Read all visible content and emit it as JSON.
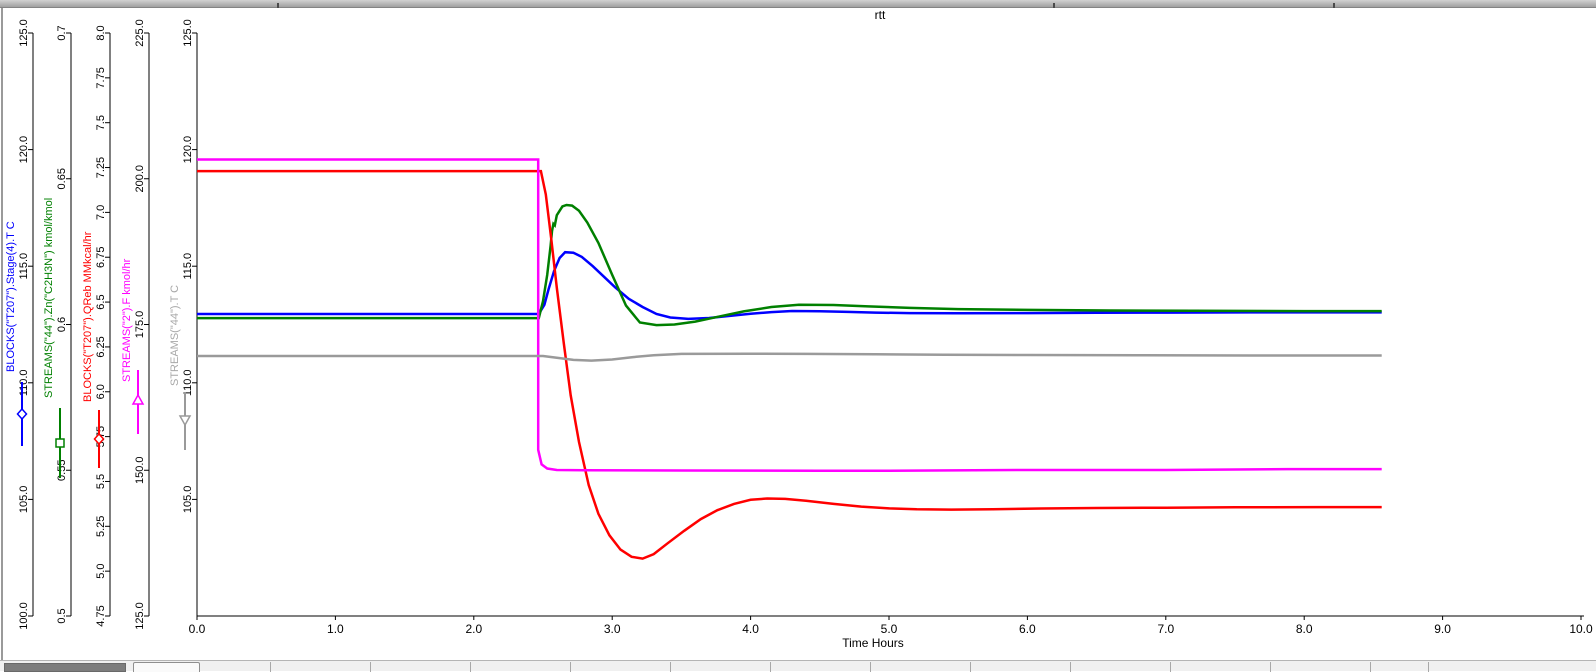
{
  "chart_data": {
    "type": "line",
    "title": "rtt",
    "xlabel": "Time Hours",
    "legend_position": "left-axes",
    "grid": false,
    "x_axis": {
      "min": 0,
      "max": 10,
      "tick_values": [
        0,
        1,
        2,
        3,
        4,
        5,
        6,
        7,
        8,
        9,
        10
      ],
      "tick_labels": [
        "0.0",
        "1.0",
        "2.0",
        "3.0",
        "4.0",
        "5.0",
        "6.0",
        "7.0",
        "8.0",
        "9.0",
        "10.0"
      ]
    },
    "y_axes": [
      {
        "label": "BLOCKS(\"T207\").Stage(4).T C",
        "color": "#0000ff",
        "label_color": "#0000ff",
        "min": 100,
        "max": 125,
        "marker": "diamond",
        "tick_values": [
          100,
          105,
          110,
          115,
          120,
          125
        ],
        "tick_labels": [
          "100.0",
          "105.0",
          "110.0",
          "115.0",
          "120.0",
          "125.0"
        ]
      },
      {
        "label": "STREAMS(\"44\").Zn(\"C2H3N\") kmol/kmol",
        "color": "#008000",
        "label_color": "#008000",
        "min": 0.5,
        "max": 0.7,
        "marker": "square",
        "tick_values": [
          0.5,
          0.55,
          0.6,
          0.65,
          0.7
        ],
        "tick_labels": [
          "0.5",
          "0.55",
          "0.6",
          "0.65",
          "0.7"
        ]
      },
      {
        "label": "BLOCKS(\"T207\").QReb MMkcal/hr",
        "color": "#ff0000",
        "label_color": "#ff0000",
        "min": 4.75,
        "max": 8.0,
        "marker": "diamond",
        "tick_values": [
          4.75,
          5.0,
          5.25,
          5.5,
          5.75,
          6.0,
          6.25,
          6.5,
          6.75,
          7.0,
          7.25,
          7.5,
          7.75,
          8.0
        ],
        "tick_labels": [
          "4.75",
          "5.0",
          "5.25",
          "5.5",
          "5.75",
          "6.0",
          "6.25",
          "6.5",
          "6.75",
          "7.0",
          "7.25",
          "7.5",
          "7.75",
          "8.0"
        ]
      },
      {
        "label": "STREAMS(\"2\").F kmol/hr",
        "color": "#ff00ff",
        "label_color": "#ff00ff",
        "min": 125,
        "max": 225,
        "marker": "triangle-up",
        "tick_values": [
          125,
          150,
          175,
          200,
          225
        ],
        "tick_labels": [
          "125.0",
          "150.0",
          "175.0",
          "200.0",
          "225.0"
        ]
      },
      {
        "label": "STREAMS(\"44\").T C",
        "color": "#9a9a9a",
        "label_color": "#a8a8a8",
        "min": 100,
        "max": 125,
        "marker": "triangle-down",
        "tick_values": [
          105,
          110,
          115,
          120,
          125
        ],
        "tick_labels": [
          "105.0",
          "110.0",
          "115.0",
          "120.0",
          "125.0"
        ]
      }
    ],
    "series": [
      {
        "name": "BLOCKS(\"T207\").Stage(4).T C",
        "axis_index": 0,
        "color": "#0000ff",
        "points": [
          [
            0,
            112.95
          ],
          [
            2.47,
            112.95
          ],
          [
            2.51,
            113.35
          ],
          [
            2.54,
            114.0
          ],
          [
            2.58,
            114.8
          ],
          [
            2.62,
            115.35
          ],
          [
            2.66,
            115.6
          ],
          [
            2.72,
            115.58
          ],
          [
            2.78,
            115.4
          ],
          [
            2.86,
            115.0
          ],
          [
            2.94,
            114.55
          ],
          [
            3.02,
            114.1
          ],
          [
            3.12,
            113.6
          ],
          [
            3.22,
            113.25
          ],
          [
            3.32,
            112.95
          ],
          [
            3.42,
            112.8
          ],
          [
            3.55,
            112.74
          ],
          [
            3.7,
            112.78
          ],
          [
            3.85,
            112.87
          ],
          [
            4.0,
            112.96
          ],
          [
            4.15,
            113.03
          ],
          [
            4.3,
            113.08
          ],
          [
            4.5,
            113.07
          ],
          [
            4.7,
            113.04
          ],
          [
            4.9,
            113.01
          ],
          [
            5.15,
            112.99
          ],
          [
            5.5,
            112.98
          ],
          [
            6.0,
            112.99
          ],
          [
            6.5,
            113.0
          ],
          [
            7.0,
            113.01
          ],
          [
            7.6,
            113.02
          ],
          [
            8.56,
            113.02
          ]
        ]
      },
      {
        "name": "STREAMS(\"44\").Zn(\"C2H3N\") kmol/kmol",
        "axis_index": 1,
        "color": "#008000",
        "points": [
          [
            0,
            0.6022
          ],
          [
            2.47,
            0.6022
          ],
          [
            2.5,
            0.608
          ],
          [
            2.53,
            0.617
          ],
          [
            2.555,
            0.627
          ],
          [
            2.565,
            0.632
          ],
          [
            2.575,
            0.6345
          ],
          [
            2.585,
            0.634
          ],
          [
            2.6,
            0.6375
          ],
          [
            2.64,
            0.6405
          ],
          [
            2.67,
            0.641
          ],
          [
            2.71,
            0.6408
          ],
          [
            2.76,
            0.639
          ],
          [
            2.82,
            0.635
          ],
          [
            2.9,
            0.628
          ],
          [
            3.0,
            0.617
          ],
          [
            3.1,
            0.6065
          ],
          [
            3.2,
            0.6007
          ],
          [
            3.32,
            0.5998
          ],
          [
            3.45,
            0.6
          ],
          [
            3.6,
            0.601
          ],
          [
            3.75,
            0.6025
          ],
          [
            3.95,
            0.6045
          ],
          [
            4.15,
            0.606
          ],
          [
            4.35,
            0.6068
          ],
          [
            4.6,
            0.6067
          ],
          [
            4.85,
            0.6062
          ],
          [
            5.15,
            0.6057
          ],
          [
            5.5,
            0.6053
          ],
          [
            6.0,
            0.605
          ],
          [
            6.6,
            0.6048
          ],
          [
            7.2,
            0.6047
          ],
          [
            8.0,
            0.6046
          ],
          [
            8.56,
            0.6046
          ]
        ]
      },
      {
        "name": "BLOCKS(\"T207\").QReb MMkcal/hr",
        "axis_index": 2,
        "color": "#ff0000",
        "points": [
          [
            0,
            7.23
          ],
          [
            2.485,
            7.23
          ],
          [
            2.52,
            7.1
          ],
          [
            2.56,
            6.85
          ],
          [
            2.6,
            6.58
          ],
          [
            2.65,
            6.27
          ],
          [
            2.7,
            5.98
          ],
          [
            2.76,
            5.72
          ],
          [
            2.83,
            5.48
          ],
          [
            2.9,
            5.32
          ],
          [
            2.98,
            5.2
          ],
          [
            3.06,
            5.12
          ],
          [
            3.14,
            5.08
          ],
          [
            3.22,
            5.07
          ],
          [
            3.3,
            5.095
          ],
          [
            3.4,
            5.155
          ],
          [
            3.52,
            5.225
          ],
          [
            3.64,
            5.29
          ],
          [
            3.76,
            5.34
          ],
          [
            3.88,
            5.375
          ],
          [
            4.0,
            5.398
          ],
          [
            4.12,
            5.405
          ],
          [
            4.25,
            5.403
          ],
          [
            4.4,
            5.392
          ],
          [
            4.6,
            5.375
          ],
          [
            4.8,
            5.36
          ],
          [
            5.0,
            5.35
          ],
          [
            5.2,
            5.345
          ],
          [
            5.45,
            5.343
          ],
          [
            5.75,
            5.345
          ],
          [
            6.1,
            5.349
          ],
          [
            6.5,
            5.352
          ],
          [
            7.0,
            5.354
          ],
          [
            7.5,
            5.356
          ],
          [
            8.1,
            5.357
          ],
          [
            8.56,
            5.357
          ]
        ]
      },
      {
        "name": "STREAMS(\"2\").F kmol/hr",
        "axis_index": 3,
        "color": "#ff00ff",
        "points": [
          [
            0,
            203.3
          ],
          [
            2.465,
            203.3
          ],
          [
            2.465,
            153.5
          ],
          [
            2.49,
            151.0
          ],
          [
            2.53,
            150.3
          ],
          [
            2.6,
            150.05
          ],
          [
            2.8,
            150.0
          ],
          [
            3.5,
            149.95
          ],
          [
            4.5,
            149.9
          ],
          [
            5.0,
            149.9
          ],
          [
            5.92,
            150.05
          ],
          [
            7.0,
            150.05
          ],
          [
            7.88,
            150.2
          ],
          [
            8.56,
            150.2
          ]
        ]
      },
      {
        "name": "STREAMS(\"44\").T C",
        "axis_index": 4,
        "color": "#9a9a9a",
        "points": [
          [
            0,
            111.15
          ],
          [
            2.5,
            111.15
          ],
          [
            2.6,
            111.07
          ],
          [
            2.72,
            110.98
          ],
          [
            2.85,
            110.95
          ],
          [
            3.0,
            111.0
          ],
          [
            3.15,
            111.1
          ],
          [
            3.3,
            111.18
          ],
          [
            3.5,
            111.24
          ],
          [
            4.0,
            111.25
          ],
          [
            4.4,
            111.24
          ],
          [
            4.9,
            111.22
          ],
          [
            5.4,
            111.2
          ],
          [
            6.0,
            111.19
          ],
          [
            6.8,
            111.18
          ],
          [
            7.6,
            111.17
          ],
          [
            8.56,
            111.17
          ]
        ]
      }
    ]
  }
}
